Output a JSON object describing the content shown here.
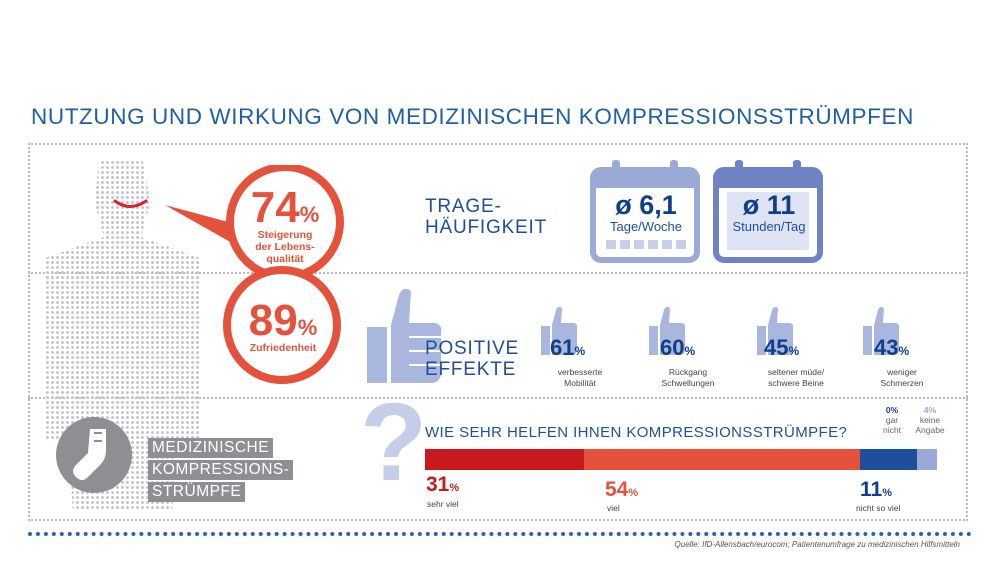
{
  "title": "NUTZUNG UND WIRKUNG VON MEDIZINISCHEN KOMPRESSIONSSTRÜMPFEN",
  "satisfaction": {
    "quality": {
      "value": "74",
      "unit": "%",
      "label": "Steigerung der Lebens-qualität",
      "label_lines": [
        "Steigerung",
        "der Lebens-",
        "qualität"
      ]
    },
    "satisfied": {
      "value": "89",
      "unit": "%",
      "label": "Zufriedenheit"
    }
  },
  "wearing": {
    "label_lines": [
      "TRAGE-",
      "HÄUFIGKEIT"
    ],
    "days": {
      "value": "ø 6,1",
      "unit": "Tage/Woche"
    },
    "hours": {
      "value": "ø 11",
      "unit": "Stunden/Tag"
    }
  },
  "effects": {
    "label_lines": [
      "POSITIVE",
      "EFFEKTE"
    ],
    "items": [
      {
        "value": "61",
        "unit": "%",
        "lines": [
          "verbesserte",
          "Mobilität"
        ]
      },
      {
        "value": "60",
        "unit": "%",
        "lines": [
          "Rückgang",
          "Schwellungen"
        ]
      },
      {
        "value": "45",
        "unit": "%",
        "lines": [
          "seltener müde/",
          "schwere Beine"
        ]
      },
      {
        "value": "43",
        "unit": "%",
        "lines": [
          "weniger",
          "Schmerzen"
        ]
      }
    ]
  },
  "product_label": [
    "MEDIZINISCHE",
    "KOMPRESSIONS-",
    "STRÜMPFE"
  ],
  "question": "WIE SEHR HELFEN IHNEN KOMPRESSIONSSTRÜMPFE?",
  "chart_data": {
    "type": "bar",
    "title": "WIE SEHR HELFEN IHNEN KOMPRESSIONSSTRÜMPFE?",
    "stacked": true,
    "orientation": "horizontal",
    "categories": [
      "sehr viel",
      "viel",
      "nicht so viel",
      "gar nicht",
      "keine Angabe"
    ],
    "values": [
      31,
      54,
      11,
      0,
      4
    ],
    "unit": "%",
    "colors": [
      "#c8191e",
      "#e4523b",
      "#1c4f9c",
      "#1c4f9c",
      "#9aa9d6"
    ]
  },
  "bar_labels": {
    "s1": {
      "value": "31",
      "unit": "%",
      "cap": "sehr viel"
    },
    "s2": {
      "value": "54",
      "unit": "%",
      "cap": "viel"
    },
    "s3": {
      "value": "11",
      "unit": "%",
      "cap": "nicht so viel"
    },
    "s4": {
      "value": "0%",
      "cap1": "gar",
      "cap2": "nicht"
    },
    "s5": {
      "value": "4%",
      "cap1": "keine",
      "cap2": "Angabe"
    }
  },
  "source": "Quelle: IfD-Allensbach/eurocom; Patientenumfrage zu medizinischen Hilfsmitteln",
  "colors": {
    "accent": "#e4523b",
    "navy": "#0f3f8c",
    "blue": "#1f5fa6",
    "lavender": "#9aa9d6"
  }
}
